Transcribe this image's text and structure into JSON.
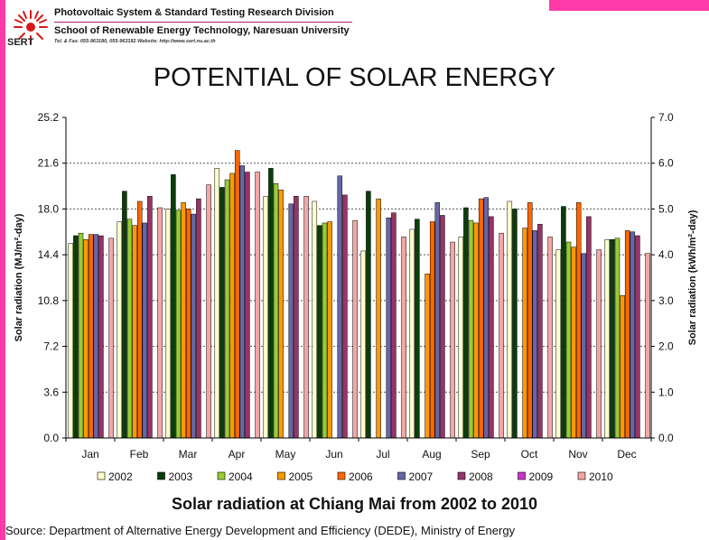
{
  "header": {
    "logo_text": "SERT",
    "line1": "Photovoltaic System & Standard Testing Research Division",
    "line2": "School of Renewable Energy Technology, Naresuan University",
    "line3": "Tel. & Fax. 055-963180, 055-963182 Website: http://www.sert.nu.ac.th"
  },
  "title": "POTENTIAL OF SOLAR ENERGY",
  "subtitle": "Solar radiation at Chiang Mai from 2002 to 2010",
  "source": "Source: Department of Alternative Energy Development and Efficiency (DEDE), Ministry of Energy",
  "colors": {
    "2002": "#ffffcc",
    "2003": "#0b3d0b",
    "2004": "#99cc33",
    "2005": "#ff9900",
    "2006": "#ff6600",
    "2007": "#6666aa",
    "2008": "#993366",
    "2009": "#cc33cc",
    "2010": "#f4a6a6"
  },
  "chart_data": {
    "type": "bar",
    "title": "Solar radiation at Chiang Mai from 2002 to 2010",
    "ylabel": "Solar radiation (MJ/m²-day)",
    "y2label": "Solar radiation (kWh/m²-day)",
    "ylim": [
      0,
      25.2
    ],
    "y2lim": [
      0,
      7.0
    ],
    "yticks": [
      "0.0",
      "3.6",
      "7.2",
      "10.8",
      "14.4",
      "18.0",
      "21.6",
      "25.2"
    ],
    "y2ticks": [
      "0.0",
      "1.0",
      "2.0",
      "3.0",
      "4.0",
      "5.0",
      "6.0",
      "7.0"
    ],
    "categories": [
      "Jan",
      "Feb",
      "Mar",
      "Apr",
      "May",
      "Jun",
      "Jul",
      "Aug",
      "Sep",
      "Oct",
      "Nov",
      "Dec"
    ],
    "series": [
      {
        "name": "2002",
        "values": [
          15.3,
          17.0,
          18.0,
          21.2,
          19.0,
          18.6,
          14.7,
          16.4,
          15.8,
          18.6,
          14.8,
          15.6
        ]
      },
      {
        "name": "2003",
        "values": [
          15.9,
          19.4,
          20.7,
          19.7,
          21.2,
          16.7,
          19.4,
          17.2,
          18.1,
          18.0,
          18.2,
          15.6
        ]
      },
      {
        "name": "2004",
        "values": [
          16.1,
          17.2,
          17.9,
          20.3,
          20.0,
          16.9,
          null,
          null,
          17.1,
          null,
          15.4,
          15.7
        ]
      },
      {
        "name": "2005",
        "values": [
          15.6,
          16.7,
          18.5,
          20.8,
          19.5,
          17.0,
          18.8,
          12.9,
          16.9,
          16.5,
          15.0,
          11.2
        ]
      },
      {
        "name": "2006",
        "values": [
          16.0,
          18.6,
          18.0,
          22.6,
          null,
          null,
          null,
          17.0,
          18.8,
          18.5,
          18.5,
          16.3
        ]
      },
      {
        "name": "2007",
        "values": [
          16.0,
          16.9,
          17.6,
          21.4,
          18.4,
          20.6,
          17.3,
          18.5,
          18.9,
          16.3,
          14.5,
          16.2
        ]
      },
      {
        "name": "2008",
        "values": [
          15.9,
          19.0,
          18.8,
          20.9,
          19.0,
          19.1,
          17.7,
          17.5,
          17.4,
          16.8,
          17.4,
          15.9
        ]
      },
      {
        "name": "2009",
        "values": [
          null,
          null,
          null,
          null,
          null,
          null,
          null,
          null,
          null,
          null,
          null,
          null
        ]
      },
      {
        "name": "2010",
        "values": [
          15.7,
          18.1,
          19.9,
          20.9,
          19.0,
          17.1,
          15.8,
          15.4,
          16.1,
          15.8,
          14.8,
          14.5
        ]
      }
    ],
    "legend": [
      "2002",
      "2003",
      "2004",
      "2005",
      "2006",
      "2007",
      "2008",
      "2009",
      "2010"
    ],
    "legend_position": "bottom",
    "grid": "dotted horizontal"
  }
}
